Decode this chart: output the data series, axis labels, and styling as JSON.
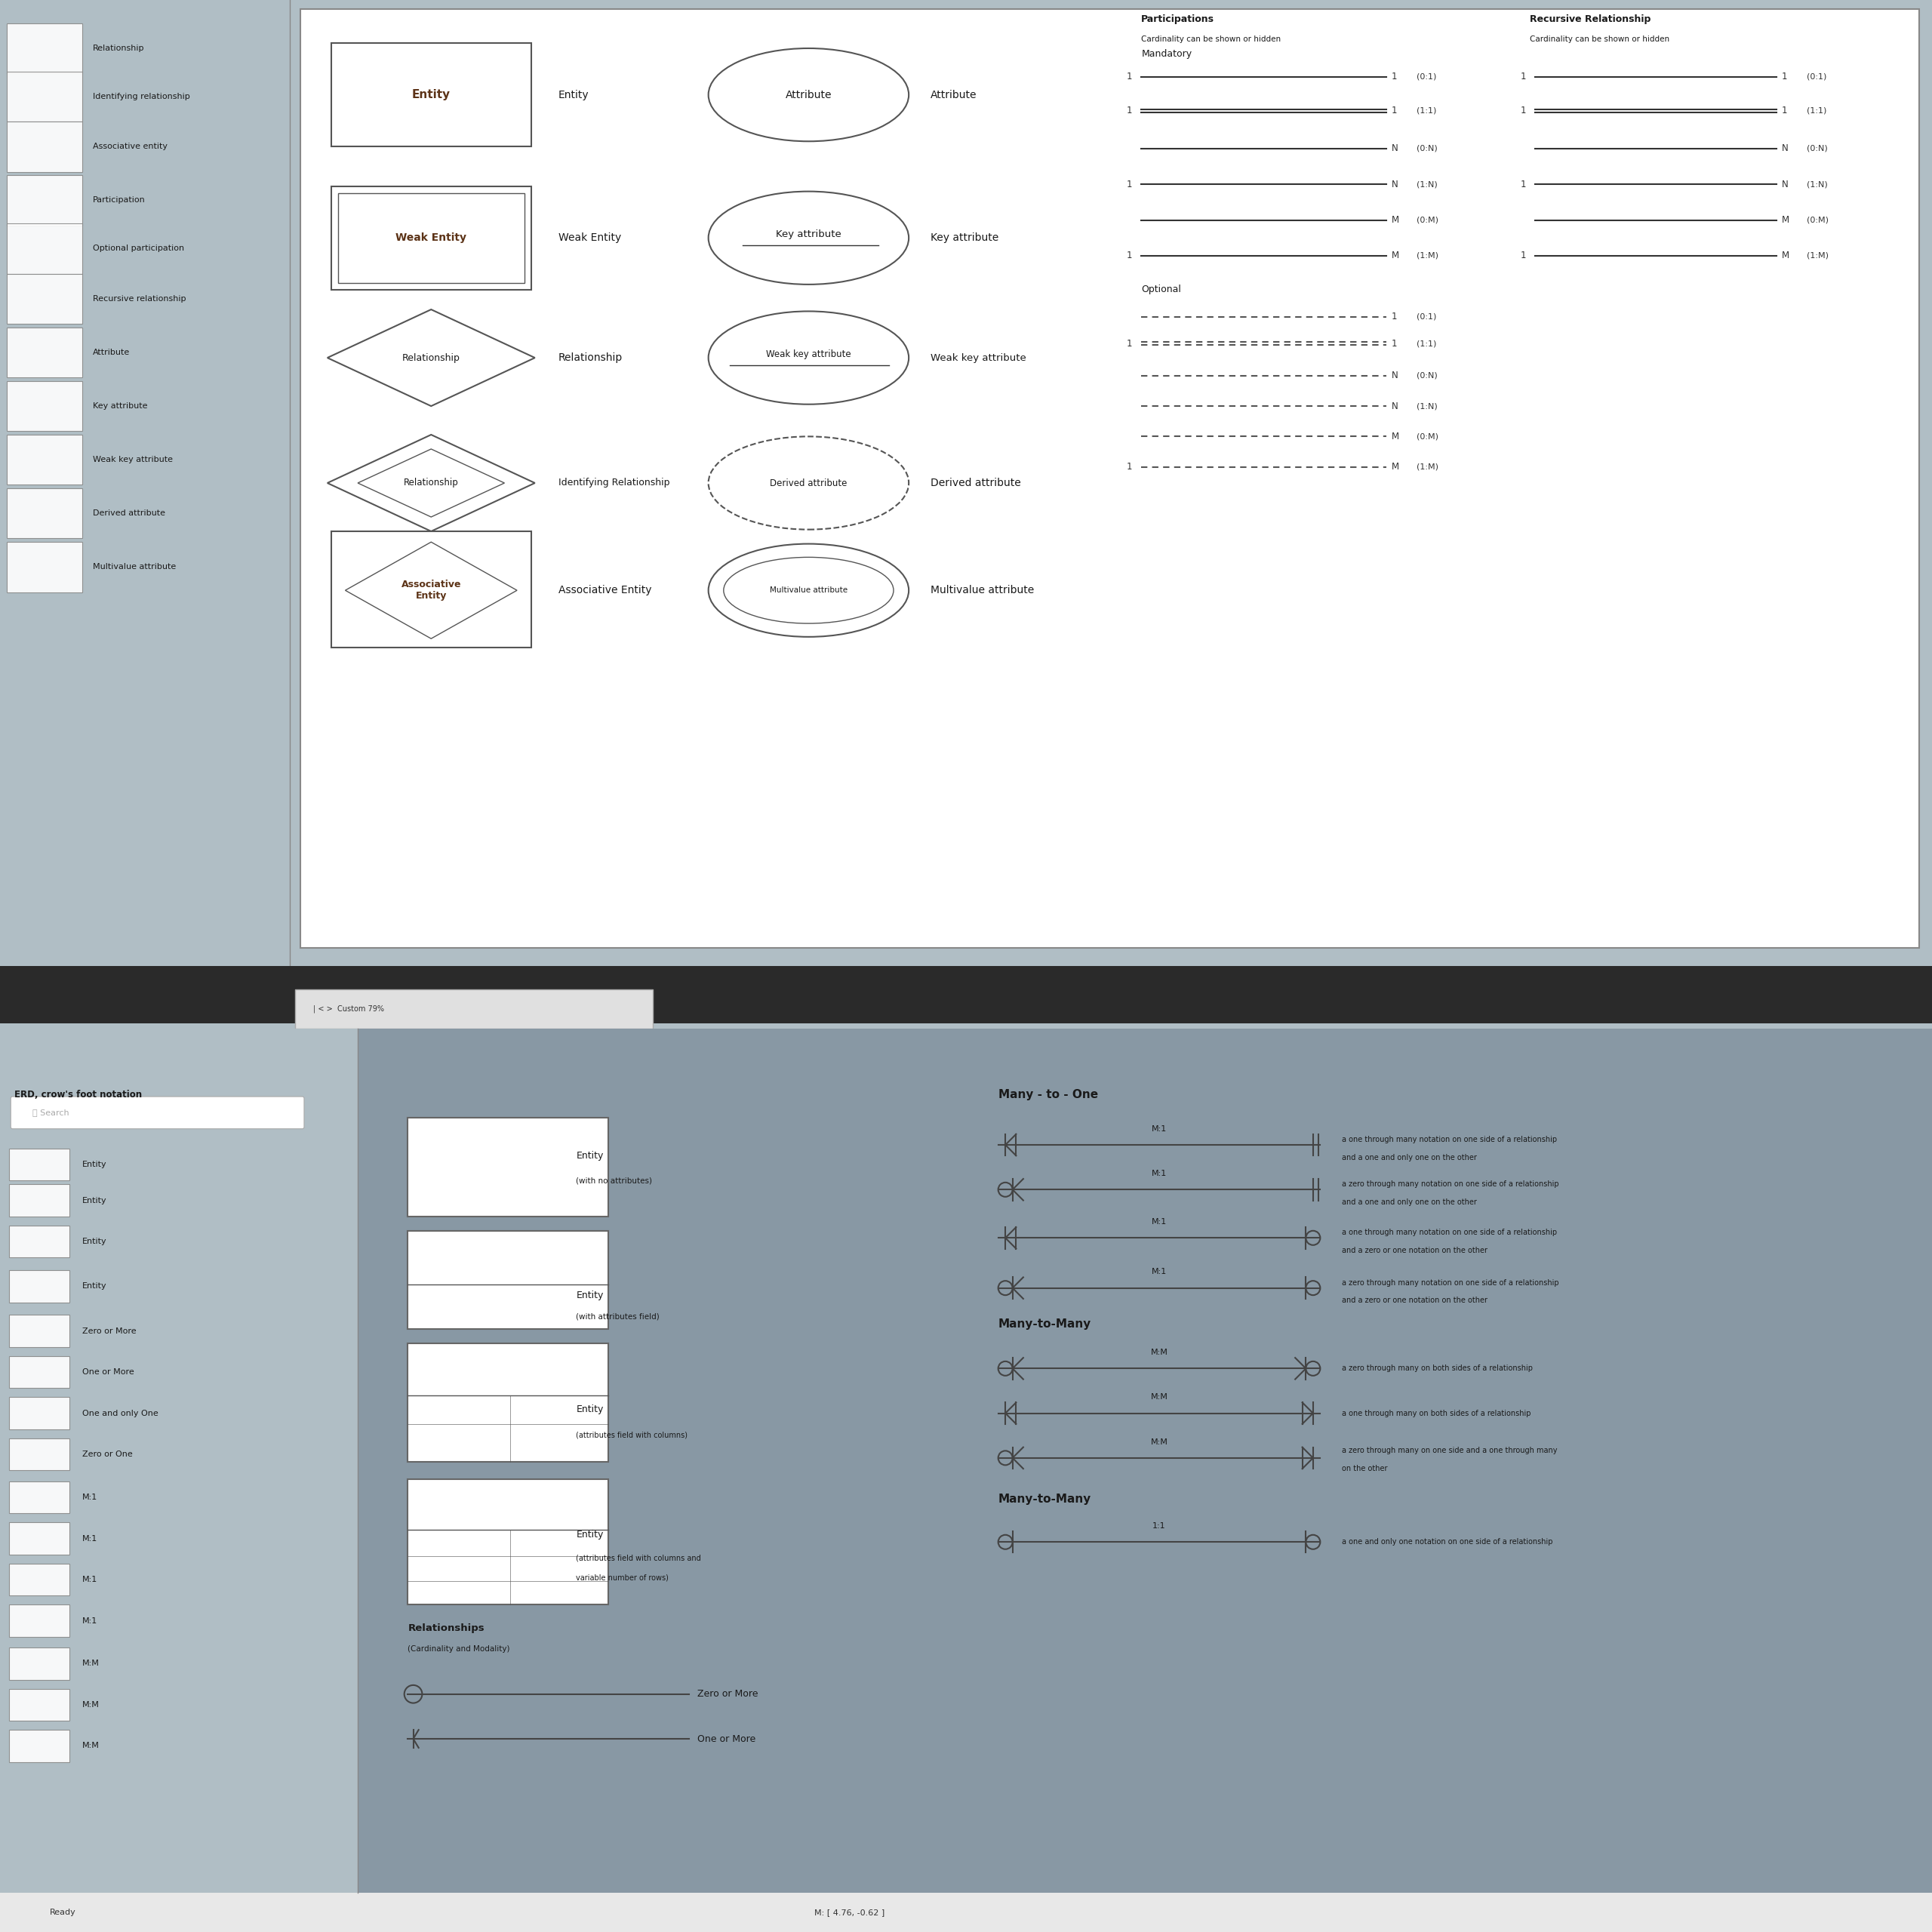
{
  "bg_top": "#b0bec5",
  "bg_sidebar": "#b0bec5",
  "bg_white": "#ffffff",
  "toolbar_bg": "#2a2a2a",
  "text_dark": "#1a1a1a",
  "text_brown": "#5c3317",
  "sidebar_items_top": [
    "Relationship",
    "Identifying relationship",
    "Associative entity",
    "Participation",
    "Optional participation",
    "Recursive relationship",
    "Attribute",
    "Key attribute",
    "Weak key attribute",
    "Derived attribute",
    "Multivalue attribute"
  ],
  "sidebar_items_bot": [
    "Entity",
    "Entity",
    "Entity",
    "Entity",
    "Zero or More",
    "One or More",
    "One and only One",
    "Zero or One",
    "M:1",
    "M:1",
    "M:1",
    "M:1",
    "M:M",
    "M:M",
    "M:M"
  ]
}
